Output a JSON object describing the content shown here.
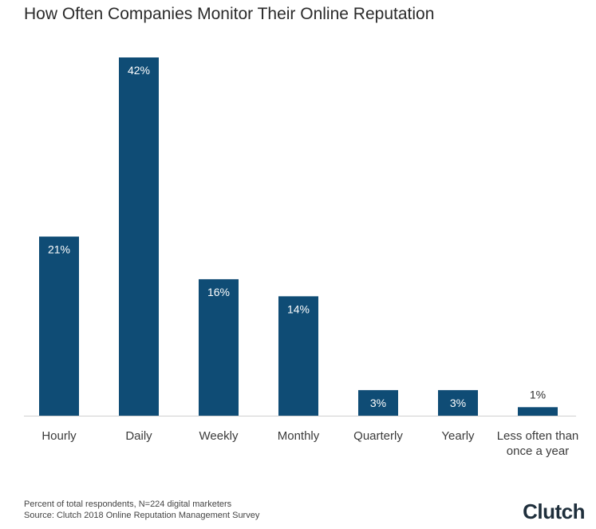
{
  "chart_data": {
    "type": "bar",
    "title": "How Often Companies Monitor Their Online Reputation",
    "categories": [
      "Hourly",
      "Daily",
      "Weekly",
      "Monthly",
      "Quarterly",
      "Yearly",
      "Less often than once a year"
    ],
    "values": [
      21,
      42,
      16,
      14,
      3,
      3,
      1
    ],
    "value_labels": [
      "21%",
      "42%",
      "16%",
      "14%",
      "3%",
      "3%",
      "1%"
    ],
    "ylim": [
      0,
      42
    ],
    "grid": false,
    "bar_color": "#0f4c75"
  },
  "footnote": {
    "line1": "Percent of total respondents, N=224 digital marketers",
    "line2": "Source: Clutch 2018 Online Reputation Management Survey"
  },
  "logo": {
    "text": "Clutch"
  }
}
